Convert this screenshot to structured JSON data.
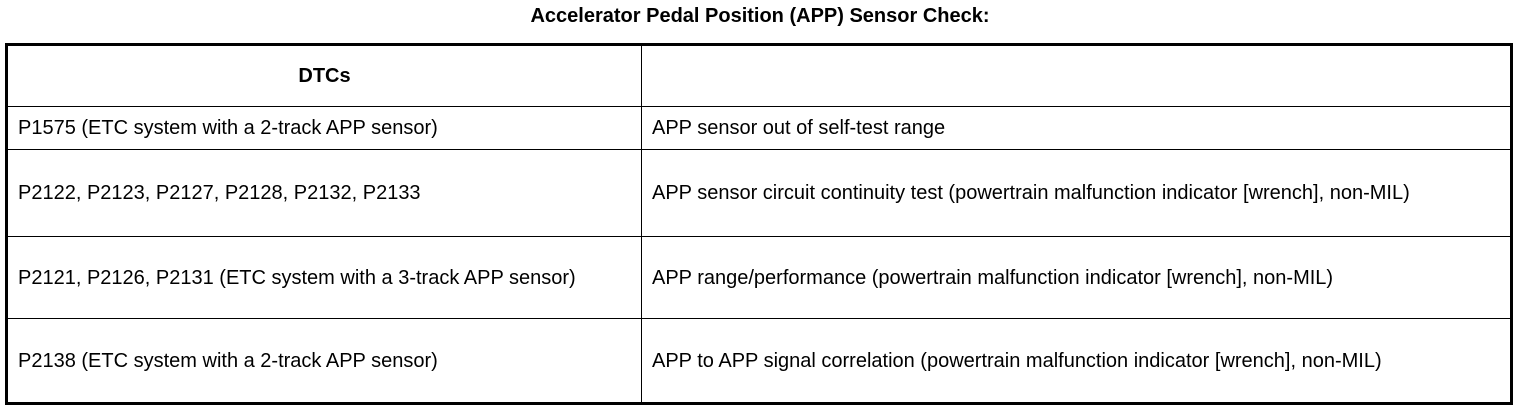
{
  "title": "Accelerator Pedal Position (APP) Sensor Check:",
  "table": {
    "headers": [
      "DTCs",
      ""
    ],
    "rows": [
      [
        "P1575 (ETC system with a 2-track APP sensor)",
        "APP sensor out of self-test range"
      ],
      [
        "P2122, P2123, P2127, P2128, P2132, P2133",
        "APP sensor circuit continuity test (powertrain malfunction indicator [wrench], non-MIL)"
      ],
      [
        "P2121, P2126, P2131 (ETC system with a 3-track APP sensor)",
        "APP range/performance (powertrain malfunction indicator [wrench], non-MIL)"
      ],
      [
        "P2138 (ETC system with a 2-track APP sensor)",
        "APP to APP signal correlation (powertrain malfunction indicator [wrench], non-MIL)"
      ]
    ]
  }
}
